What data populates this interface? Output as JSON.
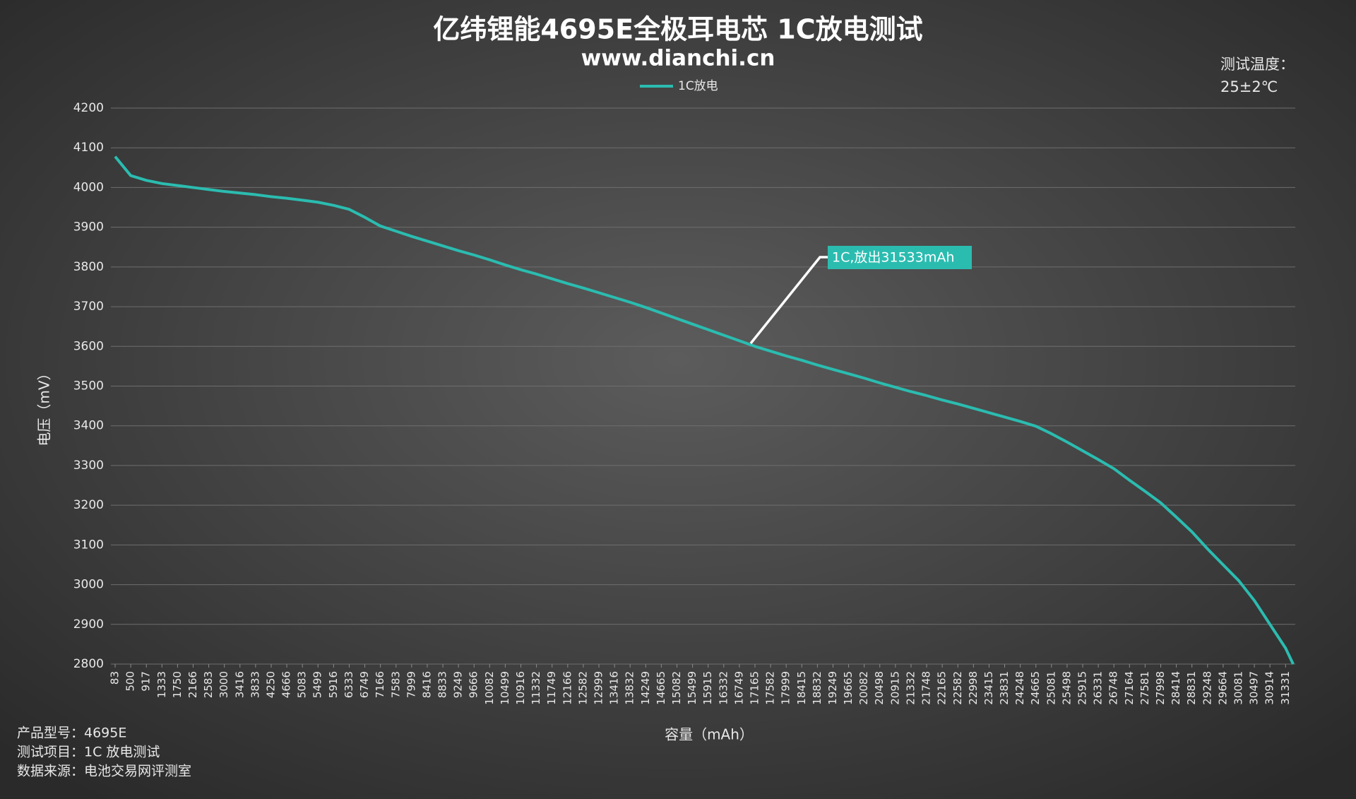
{
  "chart_data": {
    "type": "line",
    "title": "亿纬锂能4695E全极耳电芯 1C放电测试",
    "subtitle": "www.dianchi.cn",
    "note": [
      "测试温度：",
      "25±2℃"
    ],
    "footnotes": [
      "产品型号：4695E",
      "测试项目：1C 放电测试",
      "数据来源：电池交易网评测室"
    ],
    "annotation": "1C,放出31533mAh",
    "x_label": "容量（mAh）",
    "y_label": "电压（mV）",
    "legend": "top",
    "grid": true,
    "xlim": [
      83,
      31533
    ],
    "ylim": [
      2800,
      4200
    ],
    "yticks": [
      2800,
      2900,
      3000,
      3100,
      3200,
      3300,
      3400,
      3500,
      3600,
      3700,
      3800,
      3900,
      4000,
      4100,
      4200
    ],
    "xticks": [
      83,
      500,
      917,
      1333,
      1750,
      2166,
      2583,
      3000,
      3416,
      3833,
      4250,
      4666,
      5083,
      5499,
      5916,
      6333,
      6749,
      7166,
      7583,
      7999,
      8416,
      8833,
      9249,
      9666,
      10082,
      10499,
      10916,
      11332,
      11749,
      12166,
      12582,
      12999,
      13416,
      13832,
      14249,
      14665,
      15082,
      15499,
      15915,
      16332,
      16749,
      17165,
      17582,
      17999,
      18415,
      18832,
      19249,
      19665,
      20082,
      20498,
      20915,
      21332,
      21748,
      22165,
      22582,
      22998,
      23415,
      23831,
      24248,
      24665,
      25081,
      25498,
      25915,
      26331,
      26748,
      27164,
      27581,
      27998,
      28414,
      28831,
      29248,
      29664,
      30081,
      30497,
      30914,
      31331
    ],
    "x": [
      83,
      500,
      917,
      1333,
      1750,
      2166,
      2583,
      3000,
      3416,
      3833,
      4250,
      4666,
      5083,
      5499,
      5916,
      6333,
      6749,
      7166,
      7583,
      7999,
      8416,
      8833,
      9249,
      9666,
      10082,
      10499,
      10916,
      11332,
      11749,
      12166,
      12582,
      12999,
      13416,
      13832,
      14249,
      14665,
      15082,
      15499,
      15915,
      16332,
      16749,
      17165,
      17582,
      17999,
      18415,
      18832,
      19249,
      19665,
      20082,
      20498,
      20915,
      21332,
      21748,
      22165,
      22582,
      22998,
      23415,
      23831,
      24248,
      24665,
      25081,
      25498,
      25915,
      26331,
      26748,
      27164,
      27581,
      27998,
      28414,
      28831,
      29248,
      29664,
      30081,
      30497,
      30914,
      31331,
      31533
    ],
    "series": [
      {
        "name": "1C放电",
        "color": "#2bbcb0",
        "values": [
          4078,
          4030,
          4018,
          4010,
          4005,
          4000,
          3995,
          3990,
          3986,
          3982,
          3977,
          3973,
          3968,
          3963,
          3955,
          3945,
          3925,
          3903,
          3890,
          3877,
          3865,
          3853,
          3841,
          3830,
          3818,
          3805,
          3793,
          3782,
          3770,
          3758,
          3747,
          3735,
          3723,
          3711,
          3698,
          3684,
          3670,
          3656,
          3642,
          3628,
          3614,
          3600,
          3588,
          3576,
          3565,
          3553,
          3542,
          3531,
          3520,
          3508,
          3497,
          3486,
          3476,
          3465,
          3455,
          3444,
          3433,
          3422,
          3411,
          3399,
          3380,
          3359,
          3337,
          3315,
          3292,
          3263,
          3235,
          3206,
          3170,
          3133,
          3090,
          3050,
          3010,
          2960,
          2900,
          2840,
          2800
        ]
      }
    ]
  }
}
